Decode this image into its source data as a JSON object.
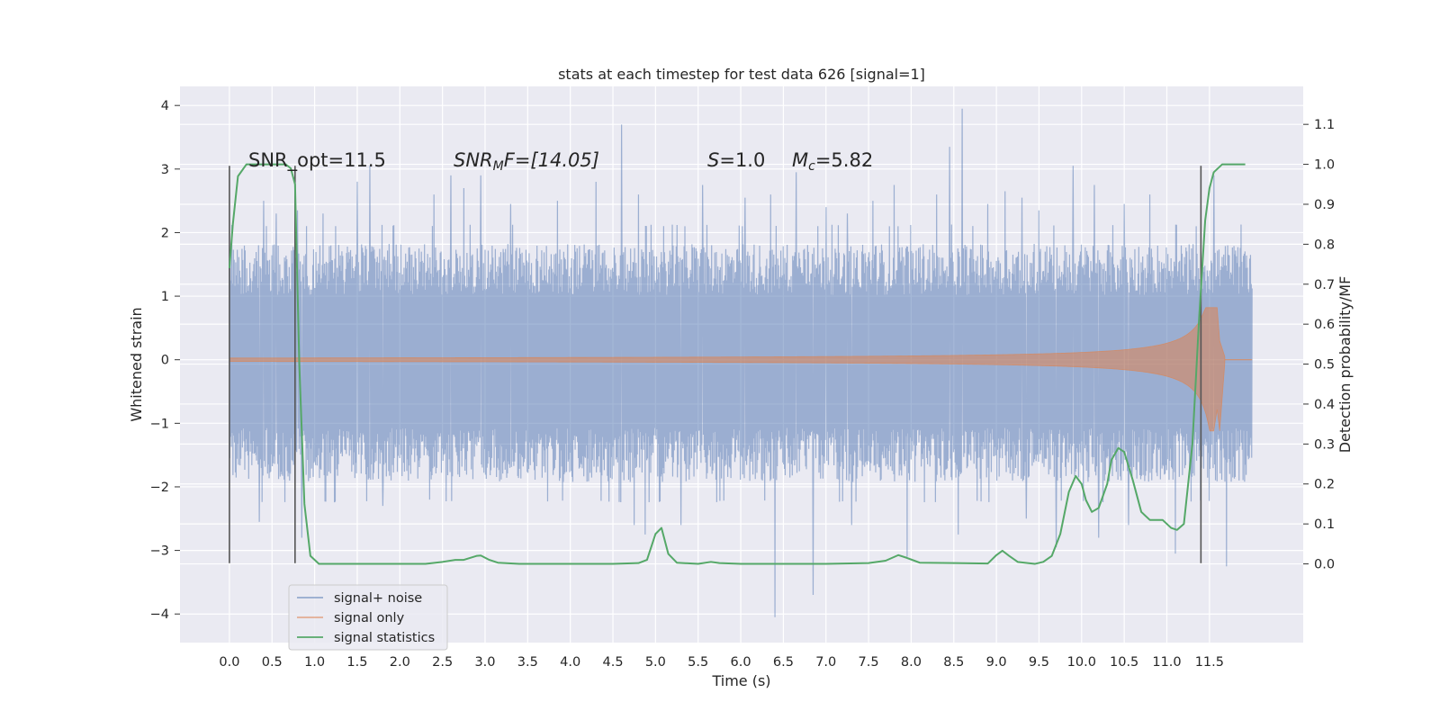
{
  "colors": {
    "background": "#eaeaf2",
    "grid": "#ffffff",
    "noise": "#4c72b0",
    "signal": "#dd8452",
    "stats": "#55a868",
    "marker": "#555555"
  },
  "chart_data": {
    "type": "line",
    "title": "stats at each timestep for test data 626 [signal=1]",
    "xlabel": "Time (s)",
    "ylabel": "Whitened strain",
    "y2label": "Detection probability/MF",
    "xlim": [
      -0.58,
      12.6
    ],
    "ylim": [
      -4.45,
      4.3
    ],
    "y2lim": [
      -0.197,
      1.195
    ],
    "xticks": [
      0.0,
      0.5,
      1.0,
      1.5,
      2.0,
      2.5,
      3.0,
      3.5,
      4.0,
      4.5,
      5.0,
      5.5,
      6.0,
      6.5,
      7.0,
      7.5,
      8.0,
      8.5,
      9.0,
      9.5,
      10.0,
      10.5,
      11.0,
      11.5
    ],
    "xtick_labels": [
      "0.0",
      "0.5",
      "1.0",
      "1.5",
      "2.0",
      "2.5",
      "3.0",
      "3.5",
      "4.0",
      "4.5",
      "5.0",
      "5.5",
      "6.0",
      "6.5",
      "7.0",
      "7.5",
      "8.0",
      "8.5",
      "9.0",
      "9.5",
      "10.0",
      "10.5",
      "11.0",
      "11.5"
    ],
    "yticks": [
      -4,
      -3,
      -2,
      -1,
      0,
      1,
      2,
      3,
      4
    ],
    "ytick_labels": [
      "−4",
      "−3",
      "−2",
      "−1",
      "0",
      "1",
      "2",
      "3",
      "4"
    ],
    "y2ticks": [
      0.0,
      0.1,
      0.2,
      0.3,
      0.4,
      0.5,
      0.6,
      0.7,
      0.8,
      0.9,
      1.0,
      1.1
    ],
    "y2tick_labels": [
      "0.0",
      "0.1",
      "0.2",
      "0.3",
      "0.4",
      "0.5",
      "0.6",
      "0.7",
      "0.8",
      "0.9",
      "1.0",
      "1.1"
    ],
    "grid": true,
    "legend_position": "lower-left",
    "legend": [
      "signal+ noise",
      "signal only",
      "signal statistics"
    ],
    "annotations": {
      "snr_opt": "SNR_opt=11.5",
      "snr_mf_name": "SNR",
      "snr_mf_sub": "M",
      "snr_mf_rest": "F=[14.05]",
      "s_name": "S",
      "s_rest": "=1.0",
      "mc_name": "M",
      "mc_sub": "c",
      "mc_rest": "=5.82"
    },
    "noise": {
      "t_start": 0.0,
      "t_end": 12.0,
      "envelope_low": -1.95,
      "envelope_high": 1.85,
      "peaks": [
        [
          0.4,
          2.5
        ],
        [
          0.55,
          2.3
        ],
        [
          0.8,
          2.35
        ],
        [
          1.1,
          2.3
        ],
        [
          1.5,
          2.8
        ],
        [
          1.65,
          3.05
        ],
        [
          2.4,
          2.6
        ],
        [
          2.6,
          2.9
        ],
        [
          2.75,
          2.7
        ],
        [
          2.95,
          2.9
        ],
        [
          3.3,
          2.45
        ],
        [
          3.85,
          2.5
        ],
        [
          4.3,
          2.8
        ],
        [
          4.6,
          3.7
        ],
        [
          4.8,
          2.6
        ],
        [
          5.55,
          2.75
        ],
        [
          6.05,
          2.55
        ],
        [
          6.35,
          2.6
        ],
        [
          6.65,
          2.95
        ],
        [
          7.0,
          2.4
        ],
        [
          7.25,
          2.3
        ],
        [
          7.55,
          2.5
        ],
        [
          7.8,
          2.75
        ],
        [
          8.3,
          2.6
        ],
        [
          8.45,
          3.35
        ],
        [
          8.6,
          3.95
        ],
        [
          8.9,
          2.45
        ],
        [
          9.1,
          2.65
        ],
        [
          9.3,
          2.55
        ],
        [
          9.5,
          2.35
        ],
        [
          9.9,
          3.05
        ],
        [
          10.15,
          2.75
        ],
        [
          10.5,
          2.45
        ],
        [
          10.8,
          2.6
        ],
        [
          11.1,
          2.55
        ],
        [
          11.55,
          2.9
        ]
      ],
      "troughs": [
        [
          0.35,
          -2.55
        ],
        [
          0.85,
          -2.8
        ],
        [
          1.8,
          -2.3
        ],
        [
          2.35,
          -2.2
        ],
        [
          4.75,
          -2.6
        ],
        [
          4.88,
          -2.75
        ],
        [
          5.3,
          -2.6
        ],
        [
          6.4,
          -4.05
        ],
        [
          6.85,
          -3.7
        ],
        [
          7.3,
          -2.6
        ],
        [
          7.95,
          -3.1
        ],
        [
          8.55,
          -2.75
        ],
        [
          9.35,
          -2.5
        ],
        [
          9.7,
          -2.95
        ],
        [
          10.2,
          -2.8
        ],
        [
          10.55,
          -2.6
        ],
        [
          11.1,
          -3.05
        ],
        [
          11.7,
          -3.25
        ]
      ]
    },
    "signal": {
      "t_start": 0.0,
      "t_end": 11.55,
      "t_merger": 11.62,
      "t_ringdown_end": 11.68,
      "t_end_trace": 12.0,
      "peak_amplitude": 0.82,
      "trough_amplitude": -1.12
    },
    "statistics": {
      "x": [
        0.0,
        0.04,
        0.1,
        0.2,
        0.3,
        0.4,
        0.5,
        0.6,
        0.66,
        0.72,
        0.77,
        0.82,
        0.88,
        0.95,
        1.05,
        1.5,
        2.0,
        2.3,
        2.5,
        2.65,
        2.75,
        2.9,
        2.95,
        3.05,
        3.15,
        3.4,
        4.0,
        4.5,
        4.8,
        4.9,
        5.0,
        5.07,
        5.15,
        5.25,
        5.5,
        5.65,
        5.75,
        6.0,
        6.5,
        7.0,
        7.5,
        7.7,
        7.85,
        7.95,
        8.1,
        8.5,
        8.9,
        9.0,
        9.07,
        9.15,
        9.25,
        9.45,
        9.55,
        9.65,
        9.75,
        9.85,
        9.93,
        10.0,
        10.05,
        10.12,
        10.2,
        10.3,
        10.35,
        10.43,
        10.5,
        10.6,
        10.7,
        10.8,
        10.9,
        10.95,
        11.05,
        11.12,
        11.2,
        11.3,
        11.38,
        11.45,
        11.5,
        11.55,
        11.65,
        11.8,
        11.92
      ],
      "y": [
        0.74,
        0.85,
        0.97,
        1.0,
        1.0,
        1.0,
        1.0,
        1.0,
        1.0,
        0.99,
        0.95,
        0.5,
        0.15,
        0.02,
        0.0,
        0.0,
        0.0,
        0.0,
        0.005,
        0.01,
        0.01,
        0.02,
        0.021,
        0.01,
        0.003,
        0.0,
        0.0,
        0.0,
        0.002,
        0.01,
        0.075,
        0.09,
        0.025,
        0.003,
        0.0,
        0.005,
        0.002,
        0.0,
        0.0,
        0.0,
        0.002,
        0.008,
        0.022,
        0.015,
        0.003,
        0.002,
        0.001,
        0.022,
        0.033,
        0.02,
        0.005,
        0.0,
        0.005,
        0.02,
        0.075,
        0.18,
        0.22,
        0.2,
        0.16,
        0.13,
        0.14,
        0.2,
        0.26,
        0.29,
        0.28,
        0.21,
        0.13,
        0.11,
        0.11,
        0.11,
        0.09,
        0.085,
        0.1,
        0.3,
        0.62,
        0.86,
        0.94,
        0.98,
        1.0,
        1.0,
        1.0
      ]
    },
    "markers": [
      0.0,
      0.77,
      11.4
    ]
  }
}
